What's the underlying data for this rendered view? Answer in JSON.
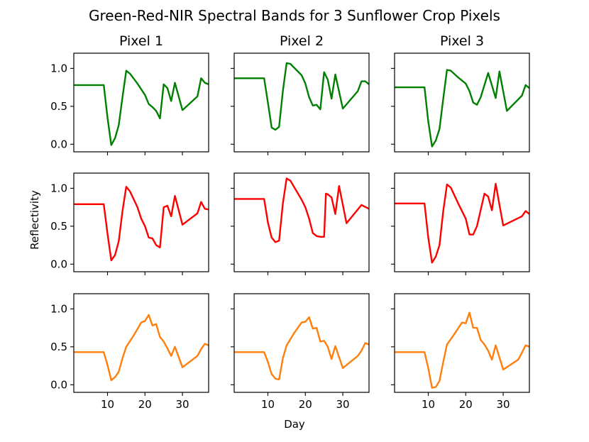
{
  "chart_data": {
    "type": "line",
    "title": "Green-Red-NIR Spectral Bands for 3 Sunflower Crop Pixels",
    "column_titles": [
      "Pixel 1",
      "Pixel 2",
      "Pixel 3"
    ],
    "xlabel": "Day",
    "ylabel": "Reflectivity",
    "xlim": [
      1,
      37
    ],
    "ylim": [
      -0.1,
      1.2
    ],
    "x_ticks": [
      10,
      20,
      30
    ],
    "x_tick_labels": [
      "10",
      "20",
      "30"
    ],
    "y_ticks": [
      0.0,
      0.5,
      1.0
    ],
    "y_tick_labels": [
      "0.0",
      "0.5",
      "1.0"
    ],
    "grid": false,
    "bands": [
      {
        "name": "Green",
        "color": "#008000",
        "pixels": [
          [
            [
              1,
              0.78
            ],
            [
              9,
              0.78
            ],
            [
              10,
              0.35
            ],
            [
              11,
              -0.01
            ],
            [
              12,
              0.08
            ],
            [
              13,
              0.25
            ],
            [
              14,
              0.62
            ],
            [
              15,
              0.97
            ],
            [
              16,
              0.93
            ],
            [
              18,
              0.8
            ],
            [
              20,
              0.65
            ],
            [
              21,
              0.53
            ],
            [
              22,
              0.49
            ],
            [
              23,
              0.44
            ],
            [
              24,
              0.34
            ],
            [
              25,
              0.79
            ],
            [
              26,
              0.74
            ],
            [
              27,
              0.57
            ],
            [
              28,
              0.81
            ],
            [
              30,
              0.45
            ],
            [
              34,
              0.63
            ],
            [
              35,
              0.87
            ],
            [
              36,
              0.81
            ],
            [
              37,
              0.79
            ]
          ],
          [
            [
              1,
              0.87
            ],
            [
              9,
              0.87
            ],
            [
              10,
              0.55
            ],
            [
              11,
              0.22
            ],
            [
              12,
              0.19
            ],
            [
              13,
              0.23
            ],
            [
              14,
              0.7
            ],
            [
              15,
              1.07
            ],
            [
              16,
              1.06
            ],
            [
              19,
              0.91
            ],
            [
              20,
              0.8
            ],
            [
              21,
              0.62
            ],
            [
              22,
              0.51
            ],
            [
              23,
              0.52
            ],
            [
              24,
              0.46
            ],
            [
              25,
              0.95
            ],
            [
              26,
              0.85
            ],
            [
              27,
              0.6
            ],
            [
              28,
              0.92
            ],
            [
              30,
              0.47
            ],
            [
              34,
              0.7
            ],
            [
              35,
              0.83
            ],
            [
              36,
              0.83
            ],
            [
              37,
              0.79
            ]
          ],
          [
            [
              1,
              0.75
            ],
            [
              9,
              0.75
            ],
            [
              10,
              0.3
            ],
            [
              11,
              -0.03
            ],
            [
              12,
              0.05
            ],
            [
              13,
              0.2
            ],
            [
              14,
              0.6
            ],
            [
              15,
              0.98
            ],
            [
              16,
              0.97
            ],
            [
              18,
              0.88
            ],
            [
              20,
              0.8
            ],
            [
              21,
              0.7
            ],
            [
              22,
              0.55
            ],
            [
              23,
              0.52
            ],
            [
              24,
              0.62
            ],
            [
              26,
              0.94
            ],
            [
              28,
              0.61
            ],
            [
              29,
              0.96
            ],
            [
              31,
              0.44
            ],
            [
              35,
              0.64
            ],
            [
              36,
              0.78
            ],
            [
              37,
              0.74
            ]
          ]
        ]
      },
      {
        "name": "Red",
        "color": "#ff0000",
        "pixels": [
          [
            [
              1,
              0.79
            ],
            [
              9,
              0.79
            ],
            [
              10,
              0.4
            ],
            [
              11,
              0.05
            ],
            [
              12,
              0.12
            ],
            [
              13,
              0.3
            ],
            [
              14,
              0.7
            ],
            [
              15,
              1.02
            ],
            [
              16,
              0.96
            ],
            [
              18,
              0.75
            ],
            [
              19,
              0.6
            ],
            [
              20,
              0.5
            ],
            [
              21,
              0.35
            ],
            [
              22,
              0.34
            ],
            [
              23,
              0.25
            ],
            [
              24,
              0.22
            ],
            [
              25,
              0.75
            ],
            [
              26,
              0.77
            ],
            [
              27,
              0.63
            ],
            [
              28,
              0.9
            ],
            [
              30,
              0.52
            ],
            [
              34,
              0.67
            ],
            [
              35,
              0.82
            ],
            [
              36,
              0.73
            ],
            [
              37,
              0.72
            ]
          ],
          [
            [
              1,
              0.86
            ],
            [
              9,
              0.86
            ],
            [
              10,
              0.55
            ],
            [
              11,
              0.35
            ],
            [
              12,
              0.29
            ],
            [
              13,
              0.31
            ],
            [
              14,
              0.8
            ],
            [
              15,
              1.13
            ],
            [
              16,
              1.1
            ],
            [
              19,
              0.85
            ],
            [
              20,
              0.75
            ],
            [
              21,
              0.6
            ],
            [
              22,
              0.41
            ],
            [
              23,
              0.37
            ],
            [
              24,
              0.36
            ],
            [
              25,
              0.36
            ],
            [
              25.5,
              0.93
            ],
            [
              26,
              0.92
            ],
            [
              27,
              0.88
            ],
            [
              28,
              0.66
            ],
            [
              29,
              1.03
            ],
            [
              31,
              0.54
            ],
            [
              35,
              0.78
            ],
            [
              37,
              0.73
            ]
          ],
          [
            [
              1,
              0.8
            ],
            [
              9,
              0.8
            ],
            [
              10,
              0.35
            ],
            [
              11,
              0.02
            ],
            [
              12,
              0.1
            ],
            [
              13,
              0.25
            ],
            [
              14,
              0.7
            ],
            [
              15,
              1.05
            ],
            [
              16,
              1.01
            ],
            [
              18,
              0.8
            ],
            [
              20,
              0.6
            ],
            [
              21,
              0.39
            ],
            [
              22,
              0.39
            ],
            [
              23,
              0.5
            ],
            [
              25,
              0.93
            ],
            [
              26,
              0.89
            ],
            [
              27,
              0.71
            ],
            [
              28,
              1.06
            ],
            [
              30,
              0.51
            ],
            [
              35,
              0.63
            ],
            [
              36,
              0.7
            ],
            [
              37,
              0.66
            ]
          ]
        ]
      },
      {
        "name": "NIR",
        "color": "#ff7f0e",
        "pixels": [
          [
            [
              1,
              0.43
            ],
            [
              9,
              0.43
            ],
            [
              10,
              0.26
            ],
            [
              11,
              0.06
            ],
            [
              12,
              0.1
            ],
            [
              13,
              0.17
            ],
            [
              14,
              0.35
            ],
            [
              15,
              0.5
            ],
            [
              17,
              0.65
            ],
            [
              19,
              0.82
            ],
            [
              20,
              0.84
            ],
            [
              21,
              0.92
            ],
            [
              22,
              0.78
            ],
            [
              23,
              0.8
            ],
            [
              24,
              0.63
            ],
            [
              25,
              0.57
            ],
            [
              26,
              0.48
            ],
            [
              27,
              0.38
            ],
            [
              28,
              0.5
            ],
            [
              30,
              0.23
            ],
            [
              34,
              0.38
            ],
            [
              35,
              0.47
            ],
            [
              36,
              0.54
            ],
            [
              37,
              0.52
            ]
          ],
          [
            [
              1,
              0.43
            ],
            [
              9,
              0.43
            ],
            [
              10,
              0.3
            ],
            [
              11,
              0.14
            ],
            [
              12,
              0.08
            ],
            [
              13,
              0.07
            ],
            [
              14,
              0.35
            ],
            [
              15,
              0.52
            ],
            [
              17,
              0.68
            ],
            [
              19,
              0.82
            ],
            [
              20,
              0.83
            ],
            [
              21,
              0.89
            ],
            [
              22,
              0.74
            ],
            [
              23,
              0.75
            ],
            [
              24,
              0.57
            ],
            [
              25,
              0.58
            ],
            [
              26,
              0.5
            ],
            [
              27,
              0.34
            ],
            [
              28,
              0.51
            ],
            [
              30,
              0.22
            ],
            [
              34,
              0.38
            ],
            [
              35,
              0.45
            ],
            [
              36,
              0.55
            ],
            [
              37,
              0.53
            ]
          ],
          [
            [
              1,
              0.43
            ],
            [
              9,
              0.43
            ],
            [
              10,
              0.22
            ],
            [
              11,
              -0.04
            ],
            [
              12,
              -0.03
            ],
            [
              13,
              0.05
            ],
            [
              14,
              0.3
            ],
            [
              15,
              0.53
            ],
            [
              17,
              0.67
            ],
            [
              19,
              0.82
            ],
            [
              20,
              0.81
            ],
            [
              21,
              0.95
            ],
            [
              22,
              0.75
            ],
            [
              23,
              0.75
            ],
            [
              24,
              0.59
            ],
            [
              25,
              0.53
            ],
            [
              26,
              0.45
            ],
            [
              27,
              0.33
            ],
            [
              28,
              0.52
            ],
            [
              30,
              0.2
            ],
            [
              34,
              0.33
            ],
            [
              35,
              0.42
            ],
            [
              36,
              0.52
            ],
            [
              37,
              0.5
            ]
          ]
        ]
      }
    ]
  }
}
